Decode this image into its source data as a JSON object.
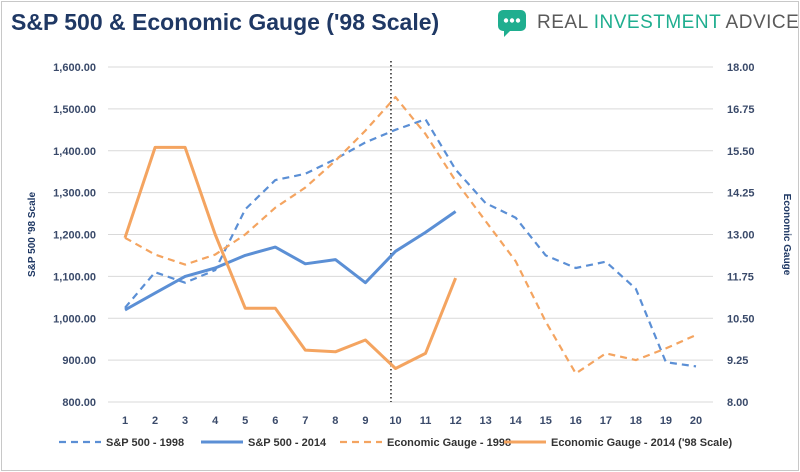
{
  "header": {
    "title": "S&P 500 & Economic Gauge ('98 Scale)",
    "brand_main": "REAL ",
    "brand_accent": "INVESTMENT",
    "brand_tail": " ADVICE"
  },
  "colors": {
    "title": "#1f3864",
    "brand_green": "#1fae8f",
    "sp_blue": "#5b8fd5",
    "gauge_orange": "#f4a460",
    "grid": "#d9d9d9"
  },
  "chart_data": {
    "type": "line",
    "x": [
      1,
      2,
      3,
      4,
      5,
      6,
      7,
      8,
      9,
      10,
      11,
      12,
      13,
      14,
      15,
      16,
      17,
      18,
      19,
      20
    ],
    "x_tick_labels": [
      "1",
      "2",
      "3",
      "4",
      "5",
      "6",
      "7",
      "8",
      "9",
      "10",
      "11",
      "12",
      "13",
      "14",
      "15",
      "16",
      "17",
      "18",
      "19",
      "20"
    ],
    "ylabel_left": "S&P 500 '98 Scale",
    "ylabel_right": "Economic Gauge",
    "ylim_left": [
      800,
      1600
    ],
    "ylim_right": [
      8.0,
      18.0
    ],
    "left_ticks": [
      "800.00",
      "900.00",
      "1,000.00",
      "1,100.00",
      "1,200.00",
      "1,300.00",
      "1,400.00",
      "1,500.00",
      "1,600.00"
    ],
    "right_ticks": [
      "8.00",
      "9.25",
      "10.50",
      "11.75",
      "13.00",
      "14.25",
      "15.50",
      "16.75",
      "18.00"
    ],
    "grid": true,
    "vertical_marker_x": 9.85,
    "legend_position": "bottom",
    "series": [
      {
        "name": "S&P 500 - 1998",
        "axis": "left",
        "style": "dashed",
        "color": "#5b8fd5",
        "x": [
          1,
          2,
          3,
          4,
          5,
          6,
          7,
          8,
          9,
          10,
          11,
          12,
          13,
          14,
          15,
          16,
          17,
          18,
          19,
          20
        ],
        "values": [
          1025,
          1110,
          1085,
          1115,
          1260,
          1330,
          1345,
          1380,
          1420,
          1450,
          1475,
          1355,
          1275,
          1240,
          1150,
          1120,
          1135,
          1070,
          895,
          885
        ]
      },
      {
        "name": "S&P 500 - 2014",
        "axis": "left",
        "style": "solid",
        "color": "#5b8fd5",
        "x": [
          1,
          2,
          3,
          4,
          5,
          6,
          7,
          8,
          9,
          10,
          11,
          12
        ],
        "values": [
          1020,
          1060,
          1100,
          1120,
          1150,
          1170,
          1130,
          1140,
          1085,
          1160,
          1205,
          1255
        ]
      },
      {
        "name": "Economic Gauge - 1998",
        "axis": "right",
        "style": "dashed",
        "color": "#f4a460",
        "x": [
          1,
          2,
          3,
          4,
          5,
          6,
          7,
          8,
          9,
          10,
          11,
          12,
          13,
          14,
          15,
          16,
          17,
          18,
          19,
          20
        ],
        "values": [
          12.9,
          12.4,
          12.1,
          12.4,
          13.0,
          13.8,
          14.4,
          15.2,
          16.1,
          17.1,
          16.0,
          14.6,
          13.4,
          12.2,
          10.4,
          8.85,
          9.45,
          9.25,
          9.6,
          10.0
        ]
      },
      {
        "name": "Economic Gauge - 2014 ('98 Scale)",
        "axis": "right",
        "style": "solid",
        "color": "#f4a460",
        "x": [
          1,
          2,
          3,
          4,
          5,
          6,
          7,
          8,
          9,
          10,
          11,
          12
        ],
        "values": [
          12.9,
          15.6,
          15.6,
          13.0,
          10.8,
          10.8,
          9.55,
          9.5,
          9.85,
          9.0,
          9.45,
          11.7
        ]
      }
    ]
  }
}
